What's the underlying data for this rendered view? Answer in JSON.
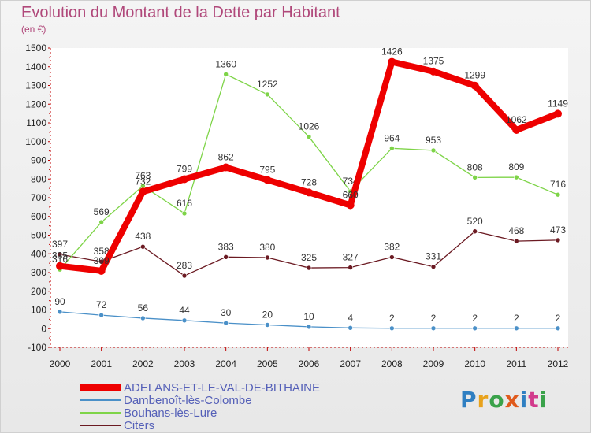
{
  "chart_data": {
    "type": "line",
    "title": "Evolution du Montant de la Dette par Habitant",
    "subtitle": "(en €)",
    "x": [
      2000,
      2001,
      2002,
      2003,
      2004,
      2005,
      2006,
      2007,
      2008,
      2009,
      2010,
      2011,
      2012
    ],
    "ylim": [
      -100,
      1500
    ],
    "yticks": [
      -100,
      0,
      100,
      200,
      300,
      400,
      500,
      600,
      700,
      800,
      900,
      1000,
      1100,
      1200,
      1300,
      1400,
      1500
    ],
    "grid": false,
    "legend_position": "bottom-left",
    "series": [
      {
        "name": "Citers",
        "color": "#6b1a22",
        "values": [
          397,
          358,
          438,
          283,
          383,
          380,
          325,
          327,
          382,
          331,
          520,
          468,
          473
        ]
      },
      {
        "name": "Dambenoît-lès-Colombe",
        "color": "#4a90c8",
        "values": [
          90,
          72,
          56,
          44,
          30,
          20,
          10,
          4,
          2,
          2,
          2,
          2,
          2
        ]
      },
      {
        "name": "Bouhans-lès-Lure",
        "color": "#7ed448",
        "values": [
          316,
          569,
          763,
          616,
          1360,
          1252,
          1026,
          734,
          964,
          953,
          808,
          809,
          716
        ]
      },
      {
        "name": "ADELANS-ET-LE-VAL-DE-BITHAINE",
        "color": "#ee0000",
        "values": [
          335,
          309,
          732,
          799,
          862,
          795,
          728,
          660,
          1426,
          1375,
          1299,
          1062,
          1149
        ]
      }
    ],
    "legend_order": [
      "ADELANS-ET-LE-VAL-DE-BITHAINE",
      "Dambenoît-lès-Colombe",
      "Bouhans-lès-Lure",
      "Citers"
    ]
  },
  "logo_text": "Proxiti"
}
